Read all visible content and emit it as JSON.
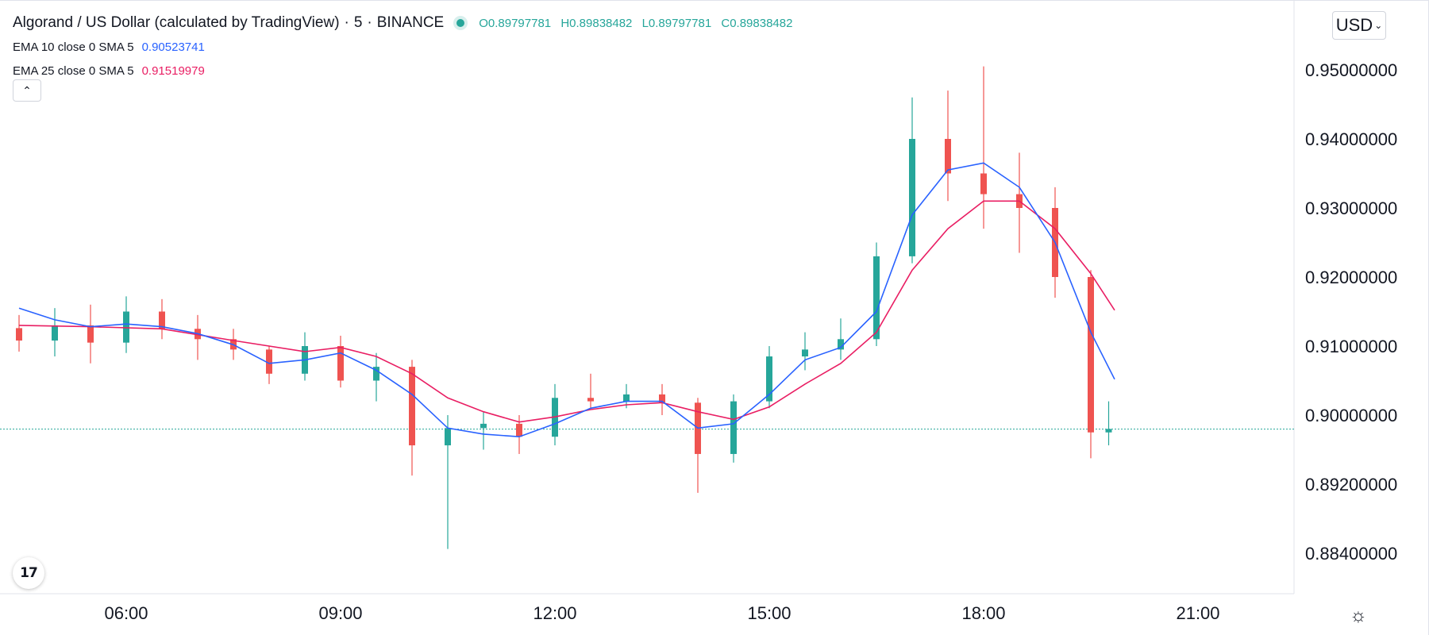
{
  "header": {
    "title": "Algorand / US Dollar (calculated by TradingView)",
    "interval": "5",
    "exchange": "BINANCE",
    "sep": "·",
    "ohlc": {
      "o_label": "O",
      "o": "0.89797781",
      "h_label": "H",
      "h": "0.89838482",
      "l_label": "L",
      "l": "0.89797781",
      "c_label": "C",
      "c": "0.89838482"
    }
  },
  "indicators": [
    {
      "label": "EMA 10 close 0 SMA 5",
      "value": "0.90523741",
      "color": "#2962ff"
    },
    {
      "label": "EMA 25 close 0 SMA 5",
      "value": "0.91519979",
      "color": "#e91e63"
    }
  ],
  "controls": {
    "collapse_icon": "chevron-up-icon",
    "collapse_glyph": "⌃",
    "currency": "USD",
    "currency_chevron": "⌄",
    "logo_text": "17",
    "settings_glyph": "☼",
    "settings_icon": "settings-icon"
  },
  "chart_data": {
    "type": "candlestick",
    "colors": {
      "up": "#26a69a",
      "down": "#ef5350",
      "ema10": "#2962ff",
      "ema25": "#e91e63",
      "last_price_line": "#26a69a"
    },
    "x_ticks": [
      "06:00",
      "09:00",
      "12:00",
      "15:00",
      "18:00",
      "21:00"
    ],
    "y_ticks": [
      "0.95000000",
      "0.94000000",
      "0.93000000",
      "0.92000000",
      "0.91000000",
      "0.90000000",
      "0.89200000",
      "0.88400000"
    ],
    "last_price": 0.89838482,
    "candles": [
      {
        "t": "04:30",
        "o": 0.9126,
        "h": 0.9145,
        "l": 0.9092,
        "c": 0.9108
      },
      {
        "t": "05:00",
        "o": 0.9108,
        "h": 0.9155,
        "l": 0.9085,
        "c": 0.913
      },
      {
        "t": "05:30",
        "o": 0.913,
        "h": 0.916,
        "l": 0.9075,
        "c": 0.9105
      },
      {
        "t": "06:00",
        "o": 0.9105,
        "h": 0.9172,
        "l": 0.909,
        "c": 0.915
      },
      {
        "t": "06:30",
        "o": 0.915,
        "h": 0.9168,
        "l": 0.911,
        "c": 0.9125
      },
      {
        "t": "07:00",
        "o": 0.9125,
        "h": 0.9145,
        "l": 0.908,
        "c": 0.911
      },
      {
        "t": "07:30",
        "o": 0.911,
        "h": 0.9125,
        "l": 0.908,
        "c": 0.9095
      },
      {
        "t": "08:00",
        "o": 0.9095,
        "h": 0.91,
        "l": 0.9045,
        "c": 0.906
      },
      {
        "t": "08:30",
        "o": 0.906,
        "h": 0.912,
        "l": 0.905,
        "c": 0.91
      },
      {
        "t": "09:00",
        "o": 0.91,
        "h": 0.9115,
        "l": 0.904,
        "c": 0.905
      },
      {
        "t": "09:30",
        "o": 0.905,
        "h": 0.909,
        "l": 0.902,
        "c": 0.907
      },
      {
        "t": "10:00",
        "o": 0.907,
        "h": 0.908,
        "l": 0.893,
        "c": 0.8965
      },
      {
        "t": "10:30",
        "o": 0.8965,
        "h": 0.9,
        "l": 0.8845,
        "c": 0.8985
      },
      {
        "t": "11:00",
        "o": 0.8985,
        "h": 0.9005,
        "l": 0.896,
        "c": 0.899
      },
      {
        "t": "11:30",
        "o": 0.899,
        "h": 0.9,
        "l": 0.8955,
        "c": 0.8975
      },
      {
        "t": "12:00",
        "o": 0.8975,
        "h": 0.9045,
        "l": 0.8965,
        "c": 0.9025
      },
      {
        "t": "12:30",
        "o": 0.9025,
        "h": 0.906,
        "l": 0.901,
        "c": 0.902
      },
      {
        "t": "13:00",
        "o": 0.902,
        "h": 0.9045,
        "l": 0.901,
        "c": 0.903
      },
      {
        "t": "13:30",
        "o": 0.903,
        "h": 0.9045,
        "l": 0.9,
        "c": 0.9018
      },
      {
        "t": "14:00",
        "o": 0.9018,
        "h": 0.9025,
        "l": 0.891,
        "c": 0.8955
      },
      {
        "t": "14:30",
        "o": 0.8955,
        "h": 0.903,
        "l": 0.8945,
        "c": 0.902
      },
      {
        "t": "15:00",
        "o": 0.902,
        "h": 0.91,
        "l": 0.901,
        "c": 0.9085
      },
      {
        "t": "15:30",
        "o": 0.9085,
        "h": 0.912,
        "l": 0.9065,
        "c": 0.9095
      },
      {
        "t": "16:00",
        "o": 0.9095,
        "h": 0.914,
        "l": 0.908,
        "c": 0.911
      },
      {
        "t": "16:30",
        "o": 0.911,
        "h": 0.925,
        "l": 0.91,
        "c": 0.923
      },
      {
        "t": "17:00",
        "o": 0.923,
        "h": 0.946,
        "l": 0.922,
        "c": 0.94
      },
      {
        "t": "17:30",
        "o": 0.94,
        "h": 0.947,
        "l": 0.931,
        "c": 0.935
      },
      {
        "t": "18:00",
        "o": 0.935,
        "h": 0.9505,
        "l": 0.927,
        "c": 0.932
      },
      {
        "t": "18:30",
        "o": 0.932,
        "h": 0.938,
        "l": 0.9235,
        "c": 0.93
      },
      {
        "t": "19:00",
        "o": 0.93,
        "h": 0.933,
        "l": 0.917,
        "c": 0.92
      },
      {
        "t": "19:30",
        "o": 0.92,
        "h": 0.921,
        "l": 0.895,
        "c": 0.898
      },
      {
        "t": "19:45",
        "o": 0.898,
        "h": 0.902,
        "l": 0.8965,
        "c": 0.8984
      }
    ],
    "ema10": [
      {
        "t": "04:30",
        "v": 0.9155
      },
      {
        "t": "05:00",
        "v": 0.9138
      },
      {
        "t": "05:30",
        "v": 0.9128
      },
      {
        "t": "06:00",
        "v": 0.9132
      },
      {
        "t": "06:30",
        "v": 0.9128
      },
      {
        "t": "07:00",
        "v": 0.9118
      },
      {
        "t": "07:30",
        "v": 0.9102
      },
      {
        "t": "08:00",
        "v": 0.9075
      },
      {
        "t": "08:30",
        "v": 0.908
      },
      {
        "t": "09:00",
        "v": 0.909
      },
      {
        "t": "09:30",
        "v": 0.9065
      },
      {
        "t": "10:00",
        "v": 0.903
      },
      {
        "t": "10:30",
        "v": 0.8985
      },
      {
        "t": "11:00",
        "v": 0.8978
      },
      {
        "t": "11:30",
        "v": 0.8975
      },
      {
        "t": "12:00",
        "v": 0.899
      },
      {
        "t": "12:30",
        "v": 0.901
      },
      {
        "t": "13:00",
        "v": 0.902
      },
      {
        "t": "13:30",
        "v": 0.902
      },
      {
        "t": "14:00",
        "v": 0.8985
      },
      {
        "t": "14:30",
        "v": 0.899
      },
      {
        "t": "15:00",
        "v": 0.903
      },
      {
        "t": "15:30",
        "v": 0.908
      },
      {
        "t": "16:00",
        "v": 0.9098
      },
      {
        "t": "16:30",
        "v": 0.915
      },
      {
        "t": "17:00",
        "v": 0.929
      },
      {
        "t": "17:30",
        "v": 0.9355
      },
      {
        "t": "18:00",
        "v": 0.9365
      },
      {
        "t": "18:30",
        "v": 0.933
      },
      {
        "t": "19:00",
        "v": 0.925
      },
      {
        "t": "19:30",
        "v": 0.912
      },
      {
        "t": "19:50",
        "v": 0.9052
      }
    ],
    "ema25": [
      {
        "t": "04:30",
        "v": 0.913
      },
      {
        "t": "05:30",
        "v": 0.9128
      },
      {
        "t": "06:30",
        "v": 0.9125
      },
      {
        "t": "07:30",
        "v": 0.9108
      },
      {
        "t": "08:30",
        "v": 0.9092
      },
      {
        "t": "09:00",
        "v": 0.9098
      },
      {
        "t": "09:30",
        "v": 0.9085
      },
      {
        "t": "10:00",
        "v": 0.906
      },
      {
        "t": "10:30",
        "v": 0.9025
      },
      {
        "t": "11:00",
        "v": 0.9005
      },
      {
        "t": "11:30",
        "v": 0.8992
      },
      {
        "t": "12:00",
        "v": 0.8998
      },
      {
        "t": "12:30",
        "v": 0.9008
      },
      {
        "t": "13:00",
        "v": 0.9015
      },
      {
        "t": "13:30",
        "v": 0.9018
      },
      {
        "t": "14:00",
        "v": 0.9005
      },
      {
        "t": "14:30",
        "v": 0.8995
      },
      {
        "t": "15:00",
        "v": 0.9012
      },
      {
        "t": "15:30",
        "v": 0.9045
      },
      {
        "t": "16:00",
        "v": 0.9075
      },
      {
        "t": "16:30",
        "v": 0.912
      },
      {
        "t": "17:00",
        "v": 0.921
      },
      {
        "t": "17:30",
        "v": 0.927
      },
      {
        "t": "18:00",
        "v": 0.931
      },
      {
        "t": "18:30",
        "v": 0.931
      },
      {
        "t": "19:00",
        "v": 0.927
      },
      {
        "t": "19:30",
        "v": 0.9205
      },
      {
        "t": "19:50",
        "v": 0.9152
      }
    ]
  }
}
